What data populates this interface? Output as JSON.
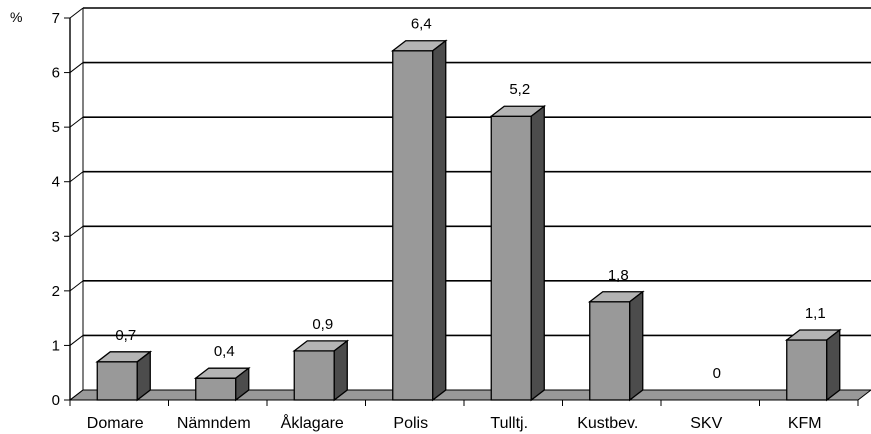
{
  "chart_data": {
    "type": "bar",
    "title": "",
    "xlabel": "",
    "ylabel": "%",
    "categories": [
      "Domare",
      "Nämndem",
      "Åklagare",
      "Polis",
      "Tulltj.",
      "Kustbev.",
      "SKV",
      "KFM"
    ],
    "values": [
      0.7,
      0.4,
      0.9,
      6.4,
      5.2,
      1.8,
      0,
      1.1
    ],
    "data_labels": [
      "0,7",
      "0,4",
      "0,9",
      "6,4",
      "5,2",
      "1,8",
      "0",
      "1,1"
    ],
    "ylim": [
      0,
      7
    ],
    "yticks": [
      "0",
      "1",
      "2",
      "3",
      "4",
      "5",
      "6",
      "7"
    ],
    "grid": true,
    "style": "3d-bar",
    "colors": {
      "bar_front": "#999999",
      "bar_top": "#b4b4b4",
      "bar_side": "#4c4c4c",
      "floor": "#999999",
      "grid": "#000000"
    }
  }
}
